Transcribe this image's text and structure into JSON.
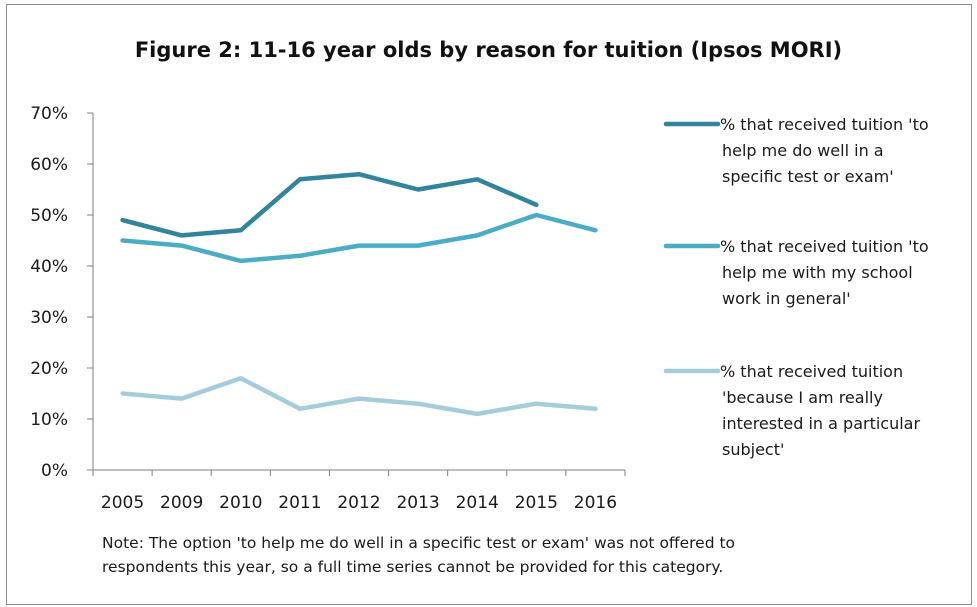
{
  "chart_data": {
    "type": "line",
    "title": "Figure 2: 11-16 year olds by reason for tuition (Ipsos MORI)",
    "categories": [
      "2005",
      "2009",
      "2010",
      "2011",
      "2012",
      "2013",
      "2014",
      "2015",
      "2016"
    ],
    "ylim": [
      0,
      70
    ],
    "y_ticks": [
      "0%",
      "10%",
      "20%",
      "30%",
      "40%",
      "50%",
      "60%",
      "70%"
    ],
    "grid": false,
    "legend_position": "right",
    "series": [
      {
        "name_lines": [
          "% that received tuition 'to",
          "help me do well in a",
          "specific test or exam'"
        ],
        "color": "#31849b",
        "values": [
          49,
          46,
          47,
          57,
          58,
          55,
          57,
          52,
          null
        ]
      },
      {
        "name_lines": [
          "% that received tuition 'to",
          "help me with my school",
          "work in general'"
        ],
        "color": "#4bacc6",
        "values": [
          45,
          44,
          41,
          42,
          44,
          44,
          46,
          50,
          47
        ]
      },
      {
        "name_lines": [
          "% that received tuition",
          "'because I am really",
          "interested in a particular",
          "subject'"
        ],
        "color": "#a5ccda",
        "values": [
          15,
          14,
          18,
          12,
          14,
          13,
          11,
          13,
          12
        ]
      }
    ]
  },
  "note": {
    "line1": "Note: The option 'to help me do well in a specific test or exam' was not offered to",
    "line2": "respondents this year, so a full time series cannot be provided for this category."
  }
}
